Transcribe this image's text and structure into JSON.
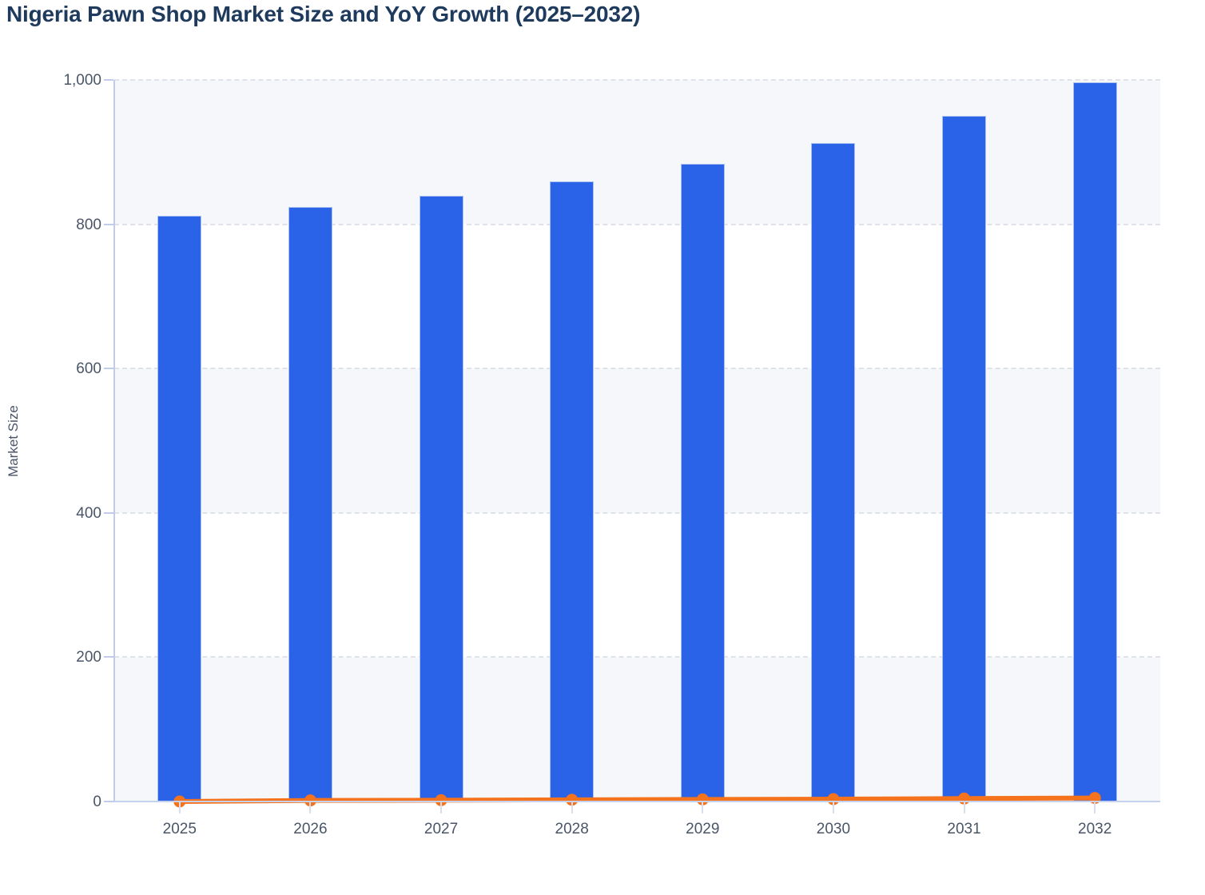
{
  "page": {
    "title": "Nigeria Pawn Shop Market Size and YoY Growth (2025–2032)"
  },
  "chart_data": {
    "type": "bar",
    "title": "Nigeria Pawn Shop Market Size and YoY Growth (2025–2032)",
    "xlabel": "",
    "ylabel": "Market Size",
    "ylim": [
      0,
      1000
    ],
    "yticks": [
      0,
      200,
      400,
      600,
      800,
      1000
    ],
    "ytick_labels": [
      "0",
      "200",
      "400",
      "600",
      "800",
      "1,000"
    ],
    "categories": [
      "2025",
      "2026",
      "2027",
      "2028",
      "2029",
      "2030",
      "2031",
      "2032"
    ],
    "series": [
      {
        "name": "Market Size",
        "type": "bar",
        "color": "#2b63e8",
        "values": [
          812,
          824,
          839,
          859,
          884,
          913,
          950,
          997
        ]
      },
      {
        "name": "YoY Growth",
        "type": "line",
        "color": "#f4731c",
        "values": [
          0,
          1.5,
          1.8,
          2.4,
          2.9,
          3.3,
          4.1,
          4.9
        ],
        "axis_note": "plotted on the Market Size axis, hugging the zero baseline"
      }
    ],
    "grid": "horizontal dashed gridlines at each y tick",
    "legend": "none",
    "plot_background_bands": [
      "#f6f7fa",
      "#ffffff"
    ]
  },
  "colors": {
    "title_text": "#1e3a5c",
    "axis_text": "#4a5568",
    "axis_line": "#c2cbe9",
    "gridline": "#e0e2ea",
    "bar_fill": "#2b63e8",
    "bar_stroke": "#a9c0f1",
    "line_color": "#f4731c"
  }
}
